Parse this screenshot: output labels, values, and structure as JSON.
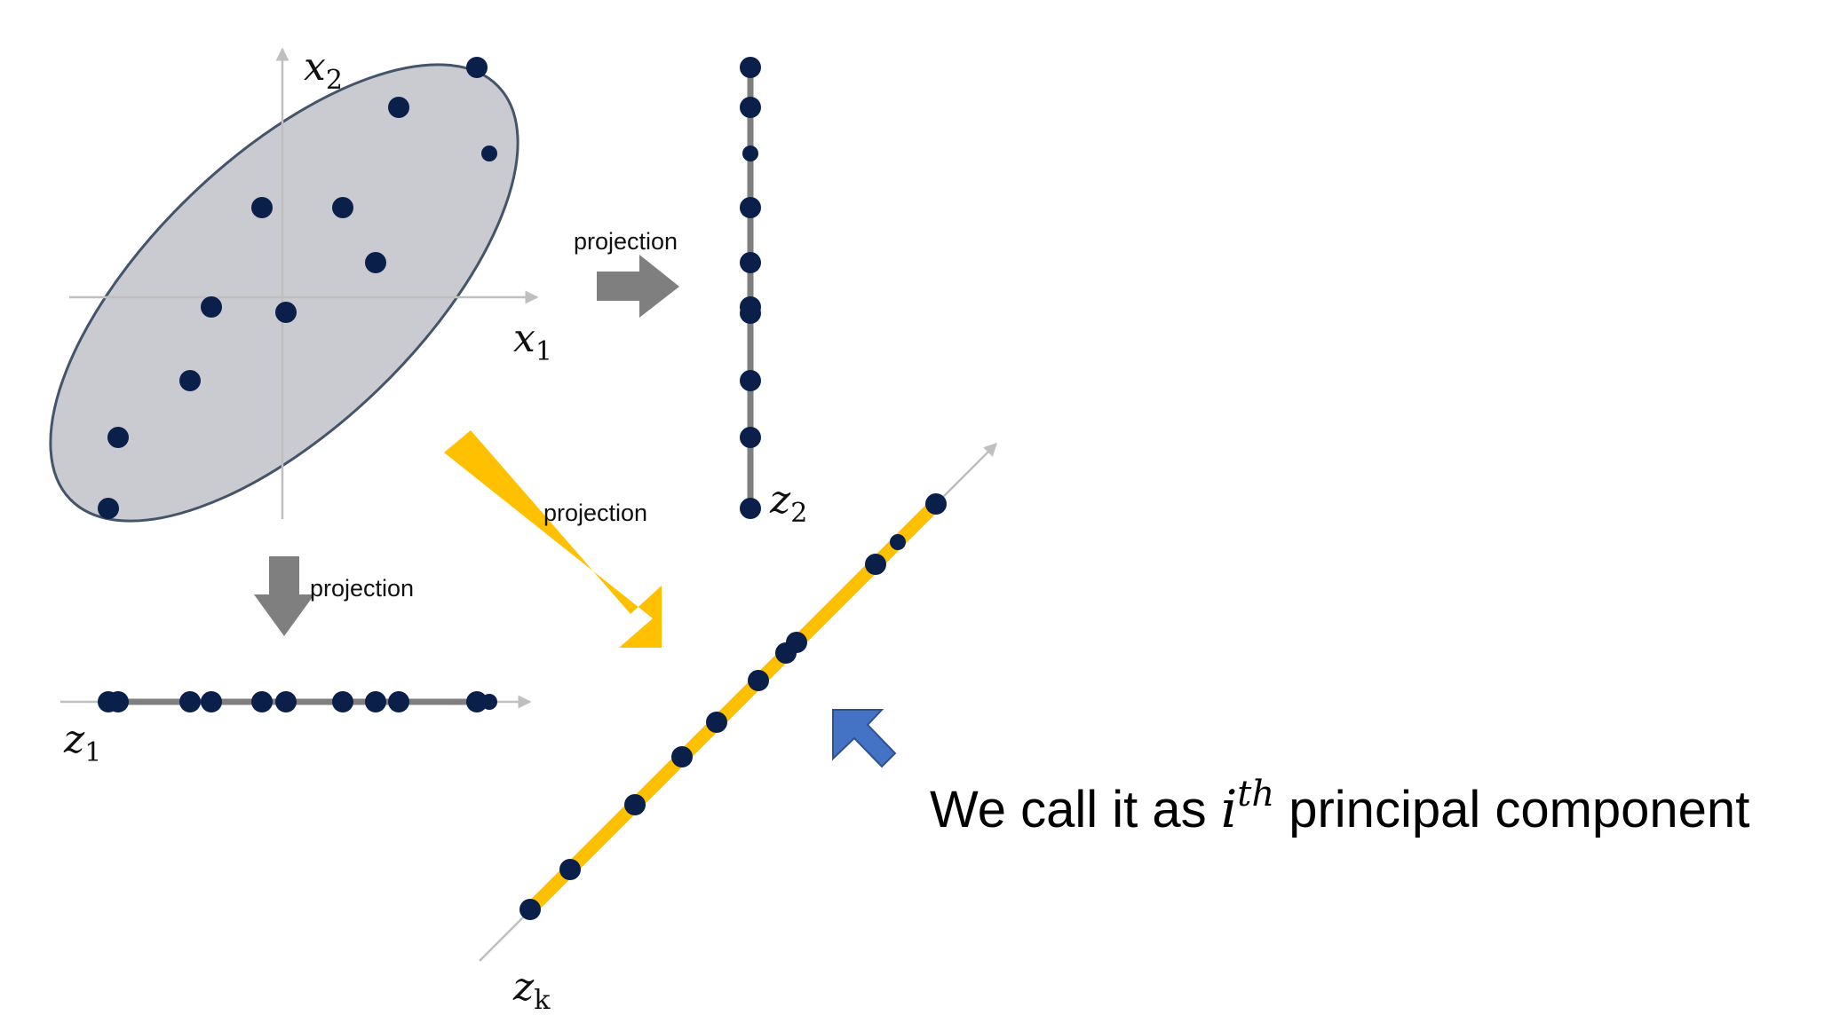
{
  "colors": {
    "point": "#0b1f4b",
    "ellipse_fill": "#c9cbd0",
    "ellipse_stroke": "#44546a",
    "axis": "#bfbfbf",
    "projection_line": "#7f7f7f",
    "gray_arrow": "#7f7f7f",
    "yellow": "#ffc000",
    "blue_arrow": "#4472c4"
  },
  "labels": {
    "x1": {
      "base": "x",
      "sub": "1"
    },
    "x2": {
      "base": "x",
      "sub": "2"
    },
    "z1": {
      "base": "z",
      "sub": "1"
    },
    "z2": {
      "base": "z",
      "sub": "2"
    },
    "zk": {
      "base": "z",
      "sub": "k"
    },
    "projection_right": "projection",
    "projection_down": "projection",
    "projection_diag": "projection"
  },
  "caption": {
    "before": "We call it as ",
    "math_base": "i",
    "math_sup": "th",
    "after": " principal component"
  }
}
